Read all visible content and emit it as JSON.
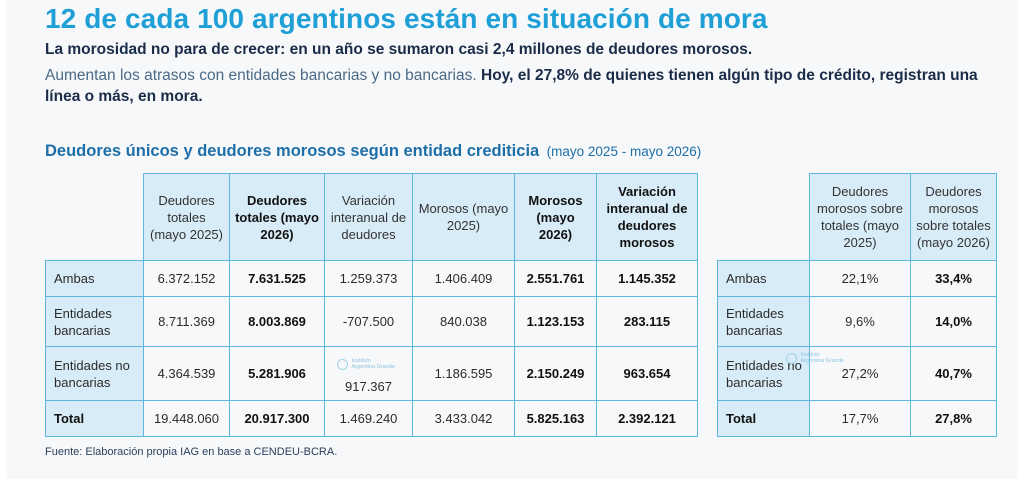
{
  "title": "12 de cada 100 argentinos están en situación de mora",
  "lead": "La morosidad no para de crecer: en un año se sumaron casi 2,4 millones de deudores morosos.",
  "para": {
    "light": "Aumentan los atrasos con entidades bancarias y no bancarias.",
    "strong": "Hoy, el 27,8% de quienes tienen algún tipo de crédito, registran una línea o más, en mora."
  },
  "subtitle": {
    "main": "Deudores únicos y deudores morosos según entidad crediticia",
    "period": "(mayo 2025 - mayo 2026)"
  },
  "table1": {
    "headers": [
      "Deudores totales (mayo 2025)",
      "Deudores totales (mayo 2026)",
      "Variación interanual de deudores",
      "Morosos (mayo 2025)",
      "Morosos (mayo 2026)",
      "Variación interanual de deudores morosos"
    ],
    "rows": [
      {
        "label": "Ambas",
        "cells": [
          "6.372.152",
          "7.631.525",
          "1.259.373",
          "1.406.409",
          "2.551.761",
          "1.145.352"
        ]
      },
      {
        "label": "Entidades bancarias",
        "cells": [
          "8.711.369",
          "8.003.869",
          "-707.500",
          "840.038",
          "1.123.153",
          "283.115"
        ]
      },
      {
        "label": "Entidades no bancarias",
        "cells": [
          "4.364.539",
          "5.281.906",
          "917.367",
          "1.186.595",
          "2.150.249",
          "963.654"
        ]
      },
      {
        "label": "Total",
        "cells": [
          "19.448.060",
          "20.917.300",
          "1.469.240",
          "3.433.042",
          "5.825.163",
          "2.392.121"
        ]
      }
    ]
  },
  "table2": {
    "headers": [
      "Deudores morosos sobre totales (mayo 2025)",
      "Deudores morosos sobre totales (mayo 2026)"
    ],
    "rows": [
      {
        "label": "Ambas",
        "cells": [
          "22,1%",
          "33,4%"
        ]
      },
      {
        "label": "Entidades bancarias",
        "cells": [
          "9,6%",
          "14,0%"
        ]
      },
      {
        "label": "Entidades no bancarias",
        "cells": [
          "27,2%",
          "40,7%"
        ]
      },
      {
        "label": "Total",
        "cells": [
          "17,7%",
          "27,8%"
        ]
      }
    ]
  },
  "watermark": {
    "line1": "Instituto",
    "line2": "Argentina Grande"
  },
  "footer": "Fuente: Elaboración propia IAG en base a CENDEU-BCRA."
}
